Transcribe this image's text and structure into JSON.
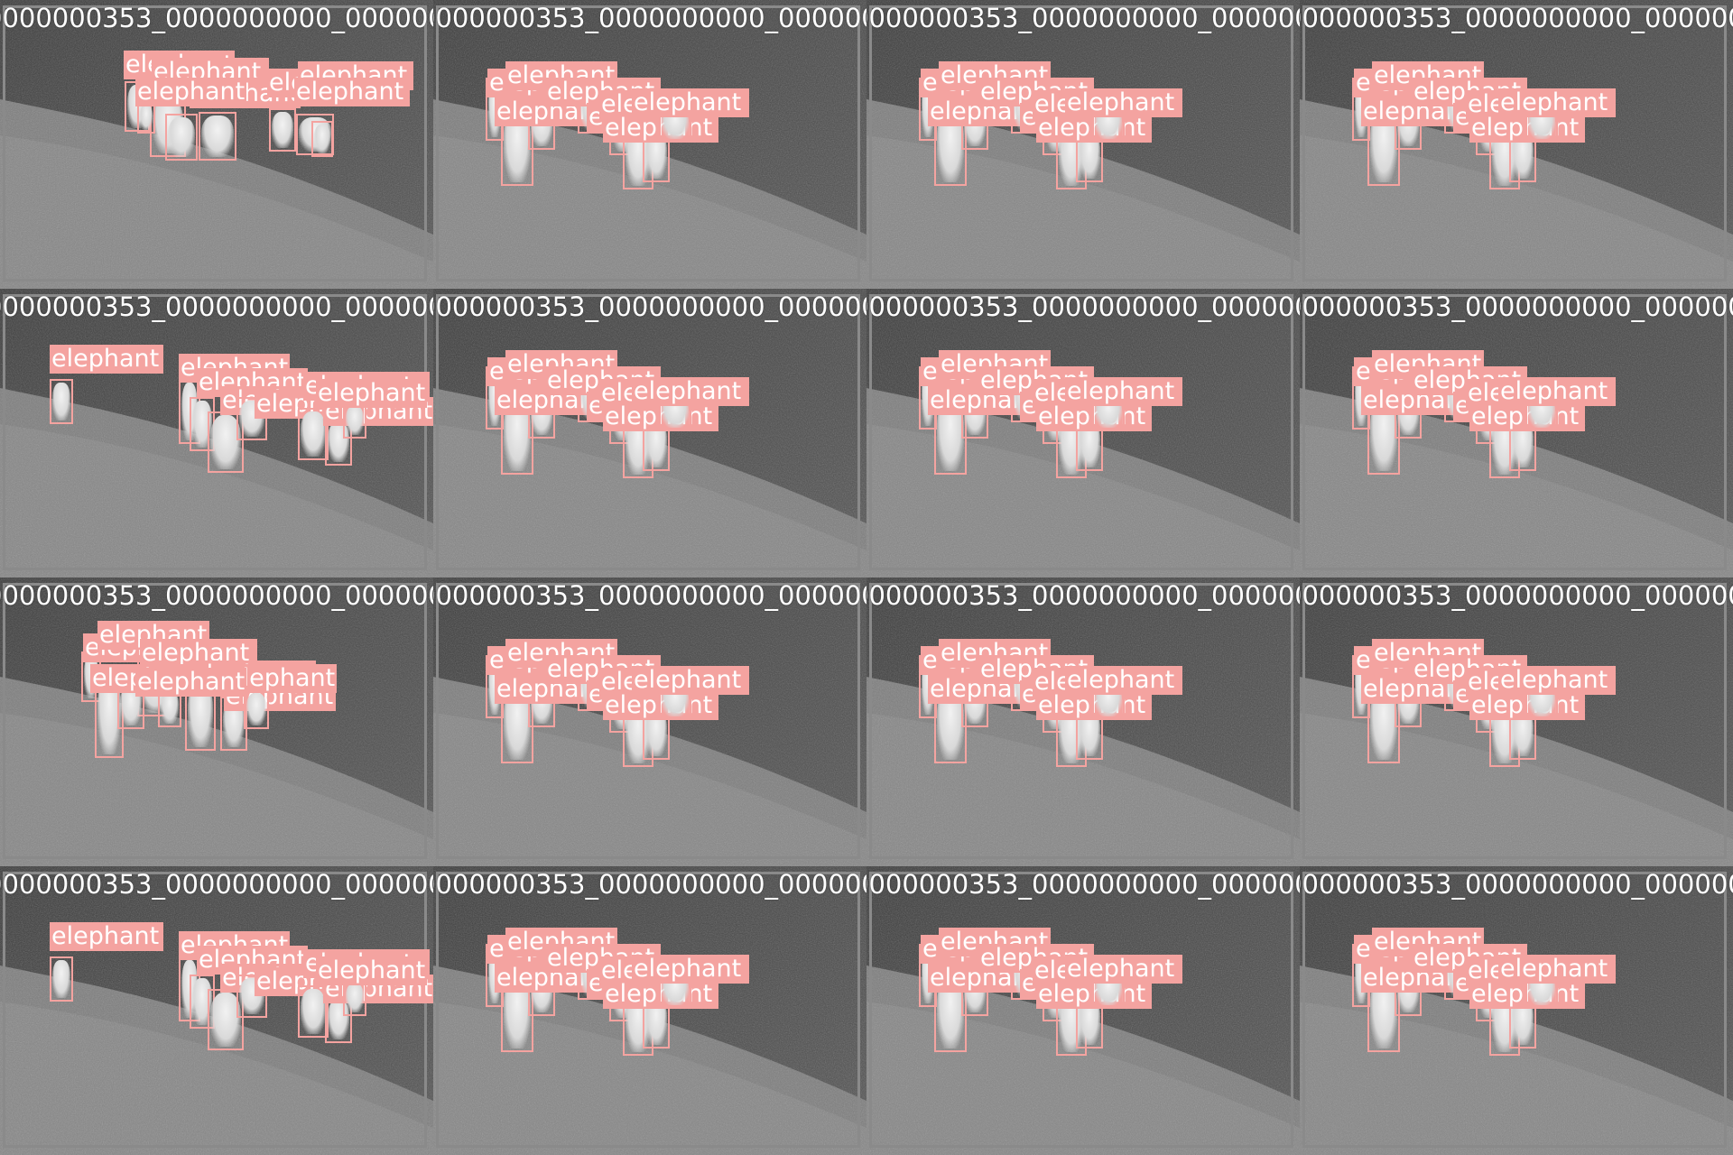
{
  "mosaic": {
    "class_label": "elephant",
    "colors": {
      "box": "#f4a3a0",
      "label_text": "#ffffff",
      "separator": "#777777"
    },
    "tiles": [
      {
        "filename": "0000000353_0000000000_0000000930.jpg",
        "variant": "wide",
        "count": 8
      },
      {
        "filename": "0000000353_0000000000_0000000744.jpg",
        "variant": "group",
        "count": 8
      },
      {
        "filename": "0000000353_0000000000_0000000748.jpg",
        "variant": "group",
        "count": 8
      },
      {
        "filename": "0000000353_0000000000_0000000748.jpg",
        "variant": "group",
        "count": 8
      },
      {
        "filename": "0000000353_0000000000_0000000845.jpg",
        "variant": "spread",
        "count": 8
      },
      {
        "filename": "0000000353_0000000000_0000000745.jpg",
        "variant": "group",
        "count": 8
      },
      {
        "filename": "0000000353_0000000000_0000000749.jpg",
        "variant": "group",
        "count": 8
      },
      {
        "filename": "0000000353_0000000000_0000000749.jpg",
        "variant": "group",
        "count": 8
      },
      {
        "filename": "0000000353_0000000000_0000000782.jpg",
        "variant": "left",
        "count": 8
      },
      {
        "filename": "0000000353_0000000000_0000000746.jpg",
        "variant": "group",
        "count": 8
      },
      {
        "filename": "0000000353_0000000000_0000000750.jpg",
        "variant": "group",
        "count": 8
      },
      {
        "filename": "0000000353_0000000000_0000000750.jpg",
        "variant": "group",
        "count": 8
      },
      {
        "filename": "0000000353_0000000000_0000000843.jpg",
        "variant": "spread",
        "count": 8
      },
      {
        "filename": "0000000353_0000000000_0000000747.jpg",
        "variant": "group",
        "count": 8
      },
      {
        "filename": "0000000353_0000000000_0000000751.jpg",
        "variant": "group",
        "count": 8
      },
      {
        "filename": "0000000353_0000000000_0000000751.jpg",
        "variant": "group",
        "count": 8
      }
    ]
  }
}
